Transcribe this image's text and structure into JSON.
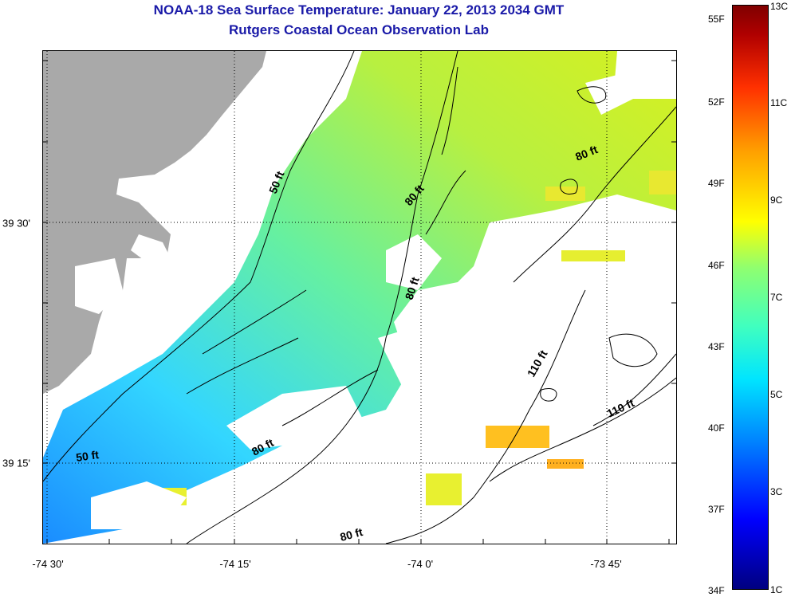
{
  "title": "NOAA-18 Sea Surface Temperature:  January 22, 2013 2034 GMT",
  "subtitle": "Rutgers Coastal Ocean Observation Lab",
  "map": {
    "x_tick_labels": [
      "-74 30'",
      "-74 15'",
      "-74 0'",
      "-73 45'"
    ],
    "y_tick_labels": [
      "39 30'",
      "39 15'"
    ],
    "contour_labels": [
      "50 ft",
      "80 ft",
      "80 ft",
      "80 ft",
      "80 ft",
      "110 ft",
      "110 ft",
      "50 ft",
      "80 ft"
    ],
    "colors": {
      "land": "#a9a9a9",
      "no_data": "#ffffff",
      "contour": "#000000"
    }
  },
  "colorbar": {
    "fahrenheit_labels": [
      "55F",
      "52F",
      "49F",
      "46F",
      "43F",
      "40F",
      "37F",
      "34F"
    ],
    "celsius_labels": [
      "13C",
      "11C",
      "9C",
      "7C",
      "5C",
      "3C",
      "1C"
    ],
    "range_f": [
      34,
      55
    ],
    "range_c": [
      1,
      13
    ]
  }
}
